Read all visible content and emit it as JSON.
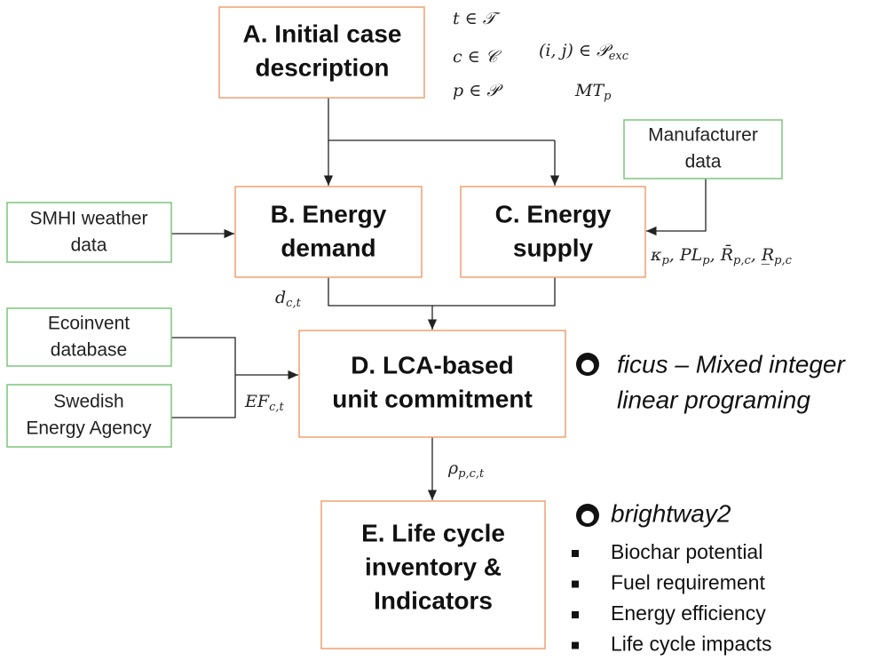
{
  "boxes": {
    "a": {
      "lines": [
        "A. Initial case",
        "description"
      ]
    },
    "b": {
      "lines": [
        "B. Energy",
        "demand"
      ]
    },
    "c": {
      "lines": [
        "C. Energy",
        "supply"
      ]
    },
    "d": {
      "lines": [
        "D. LCA-based",
        "unit commitment"
      ]
    },
    "e": {
      "lines": [
        "E. Life cycle",
        "inventory &",
        "Indicators"
      ]
    }
  },
  "inputs": {
    "smhi": {
      "lines": [
        "SMHI weather",
        "data"
      ]
    },
    "manufacturer": {
      "lines": [
        "Manufacturer",
        "data"
      ]
    },
    "ecoinvent": {
      "lines": [
        "Ecoinvent",
        "database"
      ]
    },
    "sea": {
      "lines": [
        "Swedish",
        "Energy Agency"
      ]
    }
  },
  "sets": {
    "t": "t ∈ 𝒯",
    "c": "c ∈ 𝒞",
    "p": "p ∈ 𝒫",
    "exc": {
      "base": "(i, j) ∈ 𝒫",
      "sub": "exc"
    },
    "mt": {
      "base": "MT",
      "sub": "p"
    }
  },
  "flows": {
    "demand": {
      "base": "d",
      "sub": "c,t"
    },
    "ef": {
      "base": "EF",
      "sub": "c,t"
    },
    "rho": {
      "base": "ρ",
      "sub": "p,c,t"
    },
    "params": [
      {
        "base": "κ",
        "sub": "p"
      },
      {
        "base": ", PL",
        "sub": "p"
      },
      {
        "base": ", R̄",
        "sub": "p,c"
      },
      {
        "base": ", R̲",
        "sub": "p,c"
      }
    ]
  },
  "tools": {
    "ficus": {
      "lines": [
        "ficus – Mixed integer",
        "linear programing"
      ]
    },
    "brightway": {
      "name": "brightway2",
      "bullets": [
        "Biochar potential",
        "Fuel requirement",
        "Energy efficiency",
        "Life cycle impacts"
      ]
    }
  }
}
